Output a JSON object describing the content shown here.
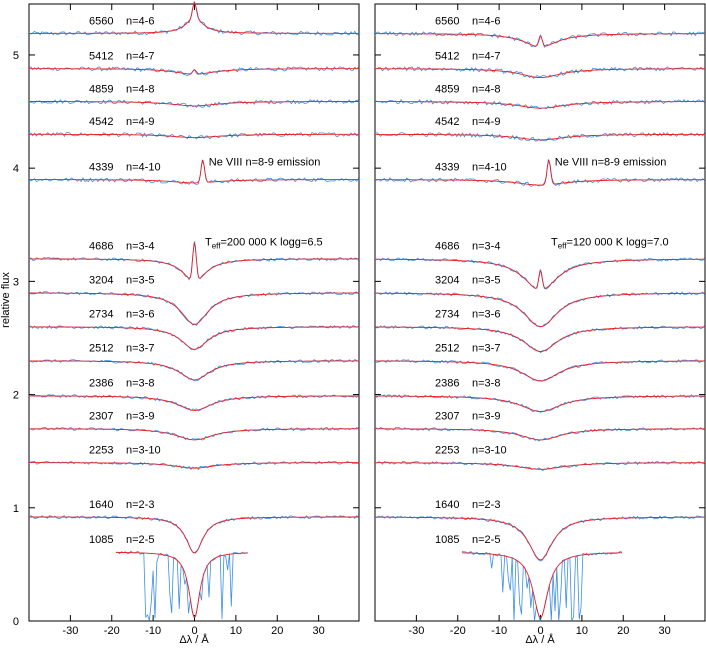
{
  "chart_data": [
    {
      "type": "line",
      "panel": "left",
      "xlabel": "Δλ / Å",
      "ylabel": "relative flux",
      "xlim": [
        -40,
        40
      ],
      "ylim": [
        0,
        5.45
      ],
      "x_ticks": [
        -30,
        -20,
        -10,
        0,
        10,
        20,
        30
      ],
      "y_ticks": [
        0,
        1,
        2,
        3,
        4,
        5
      ],
      "model_label": {
        "teff_prefix": "T",
        "teff_sub": "eff",
        "teff_value": "=200 000 K",
        "logg": "logg=6.5"
      },
      "annotation": "Ne VIII n=8-9 emission",
      "series_colors": {
        "observed": "#3b8fe6",
        "model": "#e8222a"
      },
      "lines": [
        {
          "wavelength": "6560",
          "transition": "n=4-6",
          "continuum": 5.19,
          "depth": -0.14,
          "width": 2.5,
          "emission": 0.14,
          "x_range": [
            -40,
            40
          ]
        },
        {
          "wavelength": "5412",
          "transition": "n=4-7",
          "continuum": 4.88,
          "depth": 0.05,
          "width": 6,
          "emission": 0.04,
          "x_range": [
            -40,
            40
          ]
        },
        {
          "wavelength": "4859",
          "transition": "n=4-8",
          "continuum": 4.59,
          "depth": 0.04,
          "width": 7,
          "emission": 0,
          "x_range": [
            -40,
            40
          ]
        },
        {
          "wavelength": "4542",
          "transition": "n=4-9",
          "continuum": 4.3,
          "depth": 0.03,
          "width": 7,
          "emission": 0,
          "x_range": [
            -40,
            40
          ]
        },
        {
          "wavelength": "4339",
          "transition": "n=4-10",
          "continuum": 3.9,
          "depth": 0.03,
          "width": 7,
          "emission": 0.2,
          "emission_x": 2.0,
          "x_range": [
            -40,
            40
          ]
        },
        {
          "wavelength": "4686",
          "transition": "n=3-4",
          "continuum": 3.2,
          "depth": 0.2,
          "width": 3.5,
          "emission": 0.35,
          "x_range": [
            -40,
            40
          ]
        },
        {
          "wavelength": "3204",
          "transition": "n=3-5",
          "continuum": 2.9,
          "depth": 0.28,
          "width": 4,
          "emission": 0,
          "x_range": [
            -40,
            40
          ]
        },
        {
          "wavelength": "2734",
          "transition": "n=3-6",
          "continuum": 2.6,
          "depth": 0.2,
          "width": 4,
          "emission": 0,
          "x_range": [
            -40,
            40
          ]
        },
        {
          "wavelength": "2512",
          "transition": "n=3-7",
          "continuum": 2.3,
          "depth": 0.17,
          "width": 4.5,
          "emission": 0,
          "x_range": [
            -40,
            40
          ]
        },
        {
          "wavelength": "2386",
          "transition": "n=3-8",
          "continuum": 1.99,
          "depth": 0.13,
          "width": 5,
          "emission": 0,
          "x_range": [
            -40,
            40
          ]
        },
        {
          "wavelength": "2307",
          "transition": "n=3-9",
          "continuum": 1.7,
          "depth": 0.1,
          "width": 5.5,
          "emission": 0,
          "x_range": [
            -40,
            40
          ]
        },
        {
          "wavelength": "2253",
          "transition": "n=3-10",
          "continuum": 1.4,
          "depth": 0.05,
          "width": 6,
          "emission": 0,
          "x_range": [
            -40,
            40
          ]
        },
        {
          "wavelength": "1640",
          "transition": "n=2-3",
          "continuum": 0.92,
          "depth": 0.32,
          "width": 2.5,
          "emission": 0,
          "x_range": [
            -40,
            40
          ]
        },
        {
          "wavelength": "1085",
          "transition": "n=2-5",
          "continuum": 0.61,
          "depth": 0.58,
          "width": 1.6,
          "emission": 0,
          "x_range": [
            -19,
            13
          ]
        }
      ]
    },
    {
      "type": "line",
      "panel": "right",
      "xlabel": "Δλ / Å",
      "ylabel": "",
      "xlim": [
        -40,
        40
      ],
      "ylim": [
        0,
        5.45
      ],
      "x_ticks": [
        -30,
        -20,
        -10,
        0,
        10,
        20,
        30
      ],
      "y_ticks": [
        0,
        1,
        2,
        3,
        4,
        5
      ],
      "model_label": {
        "teff_prefix": "T",
        "teff_sub": "eff",
        "teff_value": "=120 000 K",
        "logg": "logg=7.0"
      },
      "annotation": "Ne VIII n=8-9 emission",
      "series_colors": {
        "observed": "#3b8fe6",
        "model": "#e8222a"
      },
      "lines": [
        {
          "wavelength": "6560",
          "transition": "n=4-6",
          "continuum": 5.19,
          "depth": 0.12,
          "width": 5,
          "emission": 0.1,
          "x_range": [
            -40,
            40
          ]
        },
        {
          "wavelength": "5412",
          "transition": "n=4-7",
          "continuum": 4.88,
          "depth": 0.08,
          "width": 6,
          "emission": 0,
          "x_range": [
            -40,
            40
          ]
        },
        {
          "wavelength": "4859",
          "transition": "n=4-8",
          "continuum": 4.59,
          "depth": 0.06,
          "width": 7,
          "emission": 0,
          "x_range": [
            -40,
            40
          ]
        },
        {
          "wavelength": "4542",
          "transition": "n=4-9",
          "continuum": 4.3,
          "depth": 0.05,
          "width": 7,
          "emission": 0,
          "x_range": [
            -40,
            40
          ]
        },
        {
          "wavelength": "4339",
          "transition": "n=4-10",
          "continuum": 3.9,
          "depth": 0.05,
          "width": 7,
          "emission": 0.22,
          "emission_x": 2.0,
          "x_range": [
            -40,
            40
          ]
        },
        {
          "wavelength": "4686",
          "transition": "n=3-4",
          "continuum": 3.2,
          "depth": 0.28,
          "width": 5,
          "emission": 0.18,
          "x_range": [
            -40,
            40
          ]
        },
        {
          "wavelength": "3204",
          "transition": "n=3-5",
          "continuum": 2.9,
          "depth": 0.3,
          "width": 5,
          "emission": 0,
          "x_range": [
            -40,
            40
          ]
        },
        {
          "wavelength": "2734",
          "transition": "n=3-6",
          "continuum": 2.6,
          "depth": 0.22,
          "width": 5,
          "emission": 0,
          "x_range": [
            -40,
            40
          ]
        },
        {
          "wavelength": "2512",
          "transition": "n=3-7",
          "continuum": 2.3,
          "depth": 0.18,
          "width": 5.5,
          "emission": 0,
          "x_range": [
            -40,
            40
          ]
        },
        {
          "wavelength": "2386",
          "transition": "n=3-8",
          "continuum": 1.99,
          "depth": 0.14,
          "width": 6,
          "emission": 0,
          "x_range": [
            -40,
            40
          ]
        },
        {
          "wavelength": "2307",
          "transition": "n=3-9",
          "continuum": 1.7,
          "depth": 0.1,
          "width": 6,
          "emission": 0,
          "x_range": [
            -40,
            40
          ]
        },
        {
          "wavelength": "2253",
          "transition": "n=3-10",
          "continuum": 1.4,
          "depth": 0.06,
          "width": 7,
          "emission": 0,
          "x_range": [
            -40,
            40
          ]
        },
        {
          "wavelength": "1640",
          "transition": "n=2-3",
          "continuum": 0.92,
          "depth": 0.38,
          "width": 3.5,
          "emission": 0,
          "x_range": [
            -40,
            40
          ]
        },
        {
          "wavelength": "1085",
          "transition": "n=2-5",
          "continuum": 0.61,
          "depth": 0.58,
          "width": 2.2,
          "emission": 0,
          "x_range": [
            -19,
            20
          ]
        }
      ]
    }
  ]
}
